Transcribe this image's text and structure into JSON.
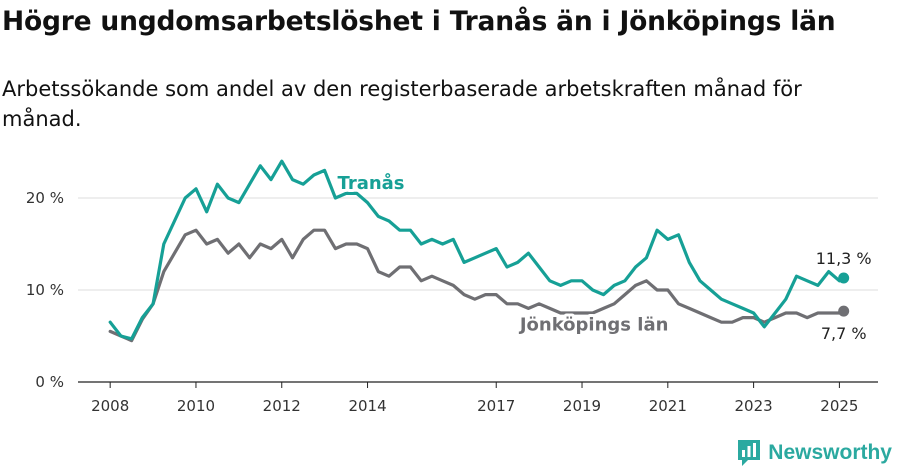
{
  "title": "Högre ungdomsarbetslöshet i Tranås än i Jönköpings län",
  "subtitle": "Arbetssökande som andel av den registerbaserade arbetskraften månad för månad.",
  "brand": {
    "name": "Newsworthy",
    "icon": "newsworthy-logo-icon"
  },
  "colors": {
    "tranas": "#16a096",
    "jonkoping": "#6f6f73",
    "grid": "#dcdcdc",
    "axis": "#222222"
  },
  "chart_data": {
    "type": "line",
    "xlabel": "",
    "ylabel": "",
    "x_range": [
      2007.25,
      2025.9
    ],
    "ylim": [
      0,
      25
    ],
    "y_ticks": [
      0,
      10,
      20
    ],
    "y_tick_labels": [
      "0 %",
      "10 %",
      "20 %"
    ],
    "x_ticks": [
      2008,
      2010,
      2012,
      2014,
      2017,
      2019,
      2021,
      2023,
      2025
    ],
    "x_tick_labels": [
      "2008",
      "2010",
      "2012",
      "2014",
      "2017",
      "2019",
      "2021",
      "2023",
      "2025"
    ],
    "series": [
      {
        "name": "Tranås",
        "label": "Tranås",
        "end_label": "11,3 %",
        "x": [
          2008.0,
          2008.25,
          2008.5,
          2008.75,
          2009.0,
          2009.25,
          2009.5,
          2009.75,
          2010.0,
          2010.25,
          2010.5,
          2010.75,
          2011.0,
          2011.25,
          2011.5,
          2011.75,
          2012.0,
          2012.25,
          2012.5,
          2012.75,
          2013.0,
          2013.25,
          2013.5,
          2013.75,
          2014.0,
          2014.25,
          2014.5,
          2014.75,
          2015.0,
          2015.25,
          2015.5,
          2015.75,
          2016.0,
          2016.25,
          2016.5,
          2016.75,
          2017.0,
          2017.25,
          2017.5,
          2017.75,
          2018.0,
          2018.25,
          2018.5,
          2018.75,
          2019.0,
          2019.25,
          2019.5,
          2019.75,
          2020.0,
          2020.25,
          2020.5,
          2020.75,
          2021.0,
          2021.25,
          2021.5,
          2021.75,
          2022.0,
          2022.25,
          2022.5,
          2022.75,
          2023.0,
          2023.25,
          2023.5,
          2023.75,
          2024.0,
          2024.25,
          2024.5,
          2024.75,
          2025.0,
          2025.1
        ],
        "values": [
          6.5,
          5.0,
          4.7,
          7.0,
          8.5,
          15.0,
          17.5,
          20.0,
          21.0,
          18.5,
          21.5,
          20.0,
          19.5,
          21.5,
          23.5,
          22.0,
          24.0,
          22.0,
          21.5,
          22.5,
          23.0,
          20.0,
          20.5,
          20.5,
          19.5,
          18.0,
          17.5,
          16.5,
          16.5,
          15.0,
          15.5,
          15.0,
          15.5,
          13.0,
          13.5,
          14.0,
          14.5,
          12.5,
          13.0,
          14.0,
          12.5,
          11.0,
          10.5,
          11.0,
          11.0,
          10.0,
          9.5,
          10.5,
          11.0,
          12.5,
          13.5,
          16.5,
          15.5,
          16.0,
          13.0,
          11.0,
          10.0,
          9.0,
          8.5,
          8.0,
          7.5,
          6.0,
          7.5,
          9.0,
          11.5,
          11.0,
          10.5,
          12.0,
          11.0,
          11.3
        ]
      },
      {
        "name": "Jönköpings län",
        "label": "Jönköpings län",
        "end_label": "7,7 %",
        "x": [
          2008.0,
          2008.25,
          2008.5,
          2008.75,
          2009.0,
          2009.25,
          2009.5,
          2009.75,
          2010.0,
          2010.25,
          2010.5,
          2010.75,
          2011.0,
          2011.25,
          2011.5,
          2011.75,
          2012.0,
          2012.25,
          2012.5,
          2012.75,
          2013.0,
          2013.25,
          2013.5,
          2013.75,
          2014.0,
          2014.25,
          2014.5,
          2014.75,
          2015.0,
          2015.25,
          2015.5,
          2015.75,
          2016.0,
          2016.25,
          2016.5,
          2016.75,
          2017.0,
          2017.25,
          2017.5,
          2017.75,
          2018.0,
          2018.25,
          2018.5,
          2018.75,
          2019.0,
          2019.25,
          2019.5,
          2019.75,
          2020.0,
          2020.25,
          2020.5,
          2020.75,
          2021.0,
          2021.25,
          2021.5,
          2021.75,
          2022.0,
          2022.25,
          2022.5,
          2022.75,
          2023.0,
          2023.25,
          2023.5,
          2023.75,
          2024.0,
          2024.25,
          2024.5,
          2024.75,
          2025.0,
          2025.1
        ],
        "values": [
          5.5,
          5.0,
          4.5,
          6.8,
          8.5,
          12.0,
          14.0,
          16.0,
          16.5,
          15.0,
          15.5,
          14.0,
          15.0,
          13.5,
          15.0,
          14.5,
          15.5,
          13.5,
          15.5,
          16.5,
          16.5,
          14.5,
          15.0,
          15.0,
          14.5,
          12.0,
          11.5,
          12.5,
          12.5,
          11.0,
          11.5,
          11.0,
          10.5,
          9.5,
          9.0,
          9.5,
          9.5,
          8.5,
          8.5,
          8.0,
          8.5,
          8.0,
          7.5,
          7.5,
          7.5,
          7.5,
          8.0,
          8.5,
          9.5,
          10.5,
          11.0,
          10.0,
          10.0,
          8.5,
          8.0,
          7.5,
          7.0,
          6.5,
          6.5,
          7.0,
          7.0,
          6.5,
          7.0,
          7.5,
          7.5,
          7.0,
          7.5,
          7.5,
          7.5,
          7.7
        ]
      }
    ]
  }
}
